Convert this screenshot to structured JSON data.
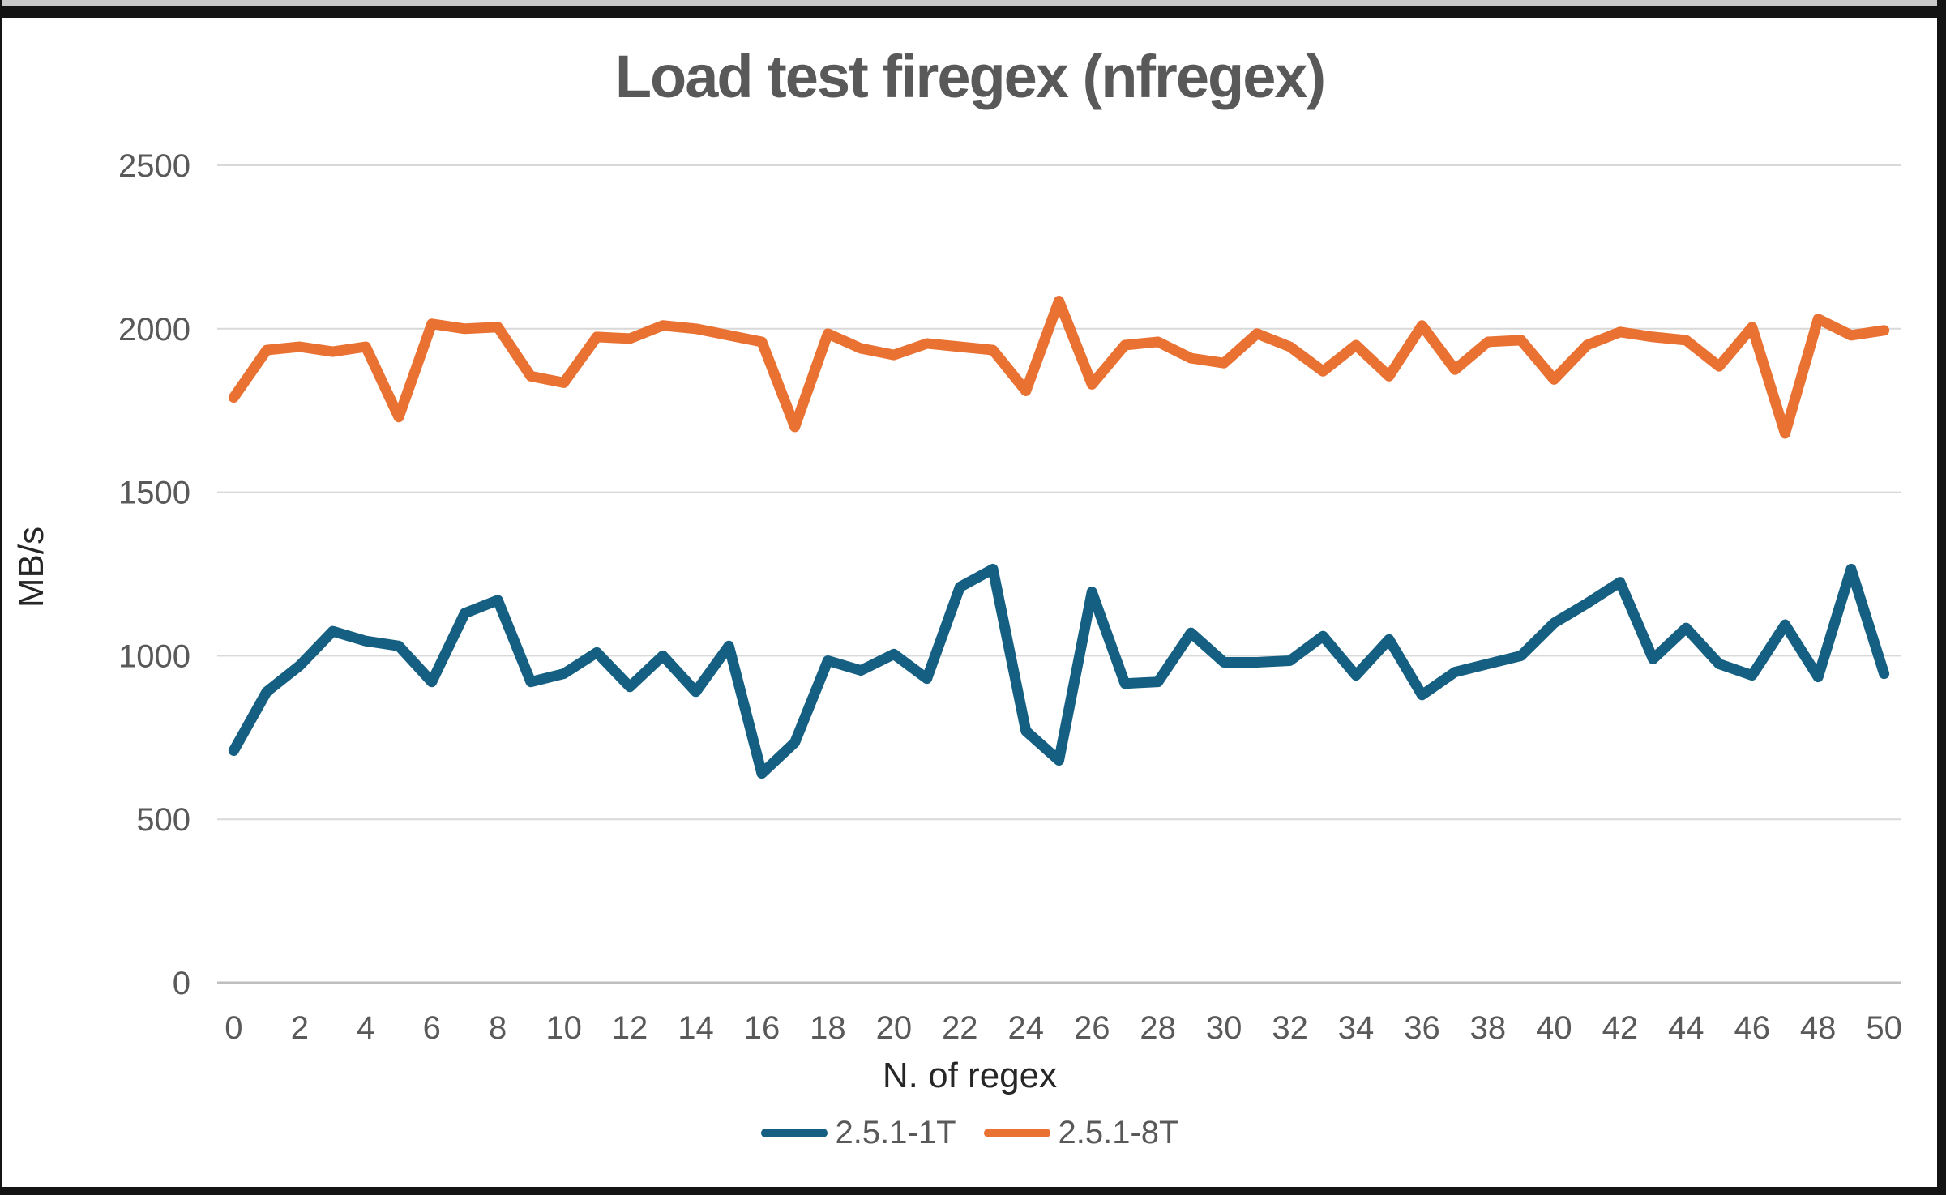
{
  "chart_data": {
    "type": "line",
    "title": "Load test firegex (nfregex)",
    "xlabel": "N. of regex",
    "ylabel": "MB/s",
    "x": [
      0,
      1,
      2,
      3,
      4,
      5,
      6,
      7,
      8,
      9,
      10,
      11,
      12,
      13,
      14,
      15,
      16,
      17,
      18,
      19,
      20,
      21,
      22,
      23,
      24,
      25,
      26,
      27,
      28,
      29,
      30,
      31,
      32,
      33,
      34,
      35,
      36,
      37,
      38,
      39,
      40,
      41,
      42,
      43,
      44,
      45,
      46,
      47,
      48,
      49,
      50
    ],
    "x_ticks": [
      0,
      2,
      4,
      6,
      8,
      10,
      12,
      14,
      16,
      18,
      20,
      22,
      24,
      26,
      28,
      30,
      32,
      34,
      36,
      38,
      40,
      42,
      44,
      46,
      48,
      50
    ],
    "y_ticks": [
      0,
      500,
      1000,
      1500,
      2000,
      2500
    ],
    "xlim": [
      0,
      50
    ],
    "ylim": [
      0,
      2500
    ],
    "grid": "horizontal",
    "legend_position": "bottom",
    "colors": {
      "gridline": "#D9D9D9",
      "axis_line": "#BFBFBF",
      "tick_text": "#595959",
      "title_text": "#595959",
      "axis_title_text": "#262626"
    },
    "series": [
      {
        "name": "2.5.1-1T",
        "color": "#156082",
        "values": [
          710,
          890,
          970,
          1075,
          1045,
          1030,
          920,
          1130,
          1170,
          920,
          945,
          1010,
          905,
          1000,
          890,
          1030,
          640,
          735,
          985,
          955,
          1005,
          930,
          1210,
          1265,
          770,
          680,
          1195,
          915,
          920,
          1070,
          980,
          980,
          985,
          1060,
          940,
          1050,
          880,
          950,
          975,
          1000,
          1100,
          1160,
          1225,
          990,
          1085,
          975,
          940,
          1095,
          935,
          1265,
          945
        ]
      },
      {
        "name": "2.5.1-8T",
        "color": "#E97132",
        "values": [
          1790,
          1935,
          1945,
          1930,
          1945,
          1730,
          2015,
          2000,
          2005,
          1855,
          1835,
          1975,
          1970,
          2010,
          2000,
          1980,
          1960,
          1700,
          1985,
          1940,
          1920,
          1955,
          1945,
          1935,
          1810,
          2085,
          1830,
          1950,
          1960,
          1910,
          1895,
          1985,
          1945,
          1870,
          1950,
          1855,
          2010,
          1875,
          1960,
          1965,
          1845,
          1950,
          1990,
          1975,
          1965,
          1885,
          2005,
          1680,
          2030,
          1980,
          1995
        ]
      }
    ]
  }
}
